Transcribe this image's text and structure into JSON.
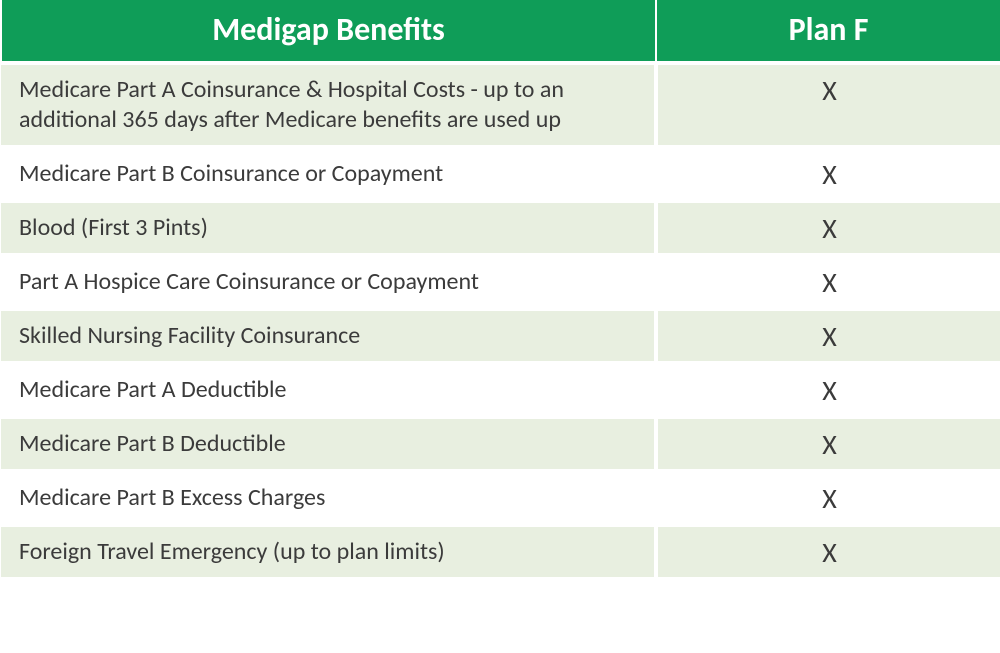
{
  "table": {
    "header_bg": "#0f9d58",
    "header_color": "#ffffff",
    "header_fontsize": 32,
    "row_fontsize": 24,
    "mark_fontsize": 28,
    "row_color": "#3b3b3b",
    "row_bg_odd": "#e8efe0",
    "row_bg_even": "#ffffff",
    "border_color": "#ffffff",
    "col1_width": 655,
    "col2_width": 345,
    "columns": [
      "Medigap Benefits",
      "Plan F"
    ],
    "rows": [
      {
        "benefit": "Medicare Part A Coinsurance & Hospital Costs  - up to an additional 365 days after Medicare benefits are used up",
        "planF": "X"
      },
      {
        "benefit": "Medicare Part B Coinsurance or Copayment",
        "planF": "X"
      },
      {
        "benefit": "Blood (First 3 Pints)",
        "planF": "X"
      },
      {
        "benefit": "Part A Hospice Care Coinsurance or Copayment",
        "planF": "X"
      },
      {
        "benefit": "Skilled Nursing Facility Coinsurance",
        "planF": "X"
      },
      {
        "benefit": "Medicare Part A Deductible",
        "planF": "X"
      },
      {
        "benefit": "Medicare Part B Deductible",
        "planF": "X"
      },
      {
        "benefit": "Medicare Part B Excess Charges",
        "planF": "X"
      },
      {
        "benefit": "Foreign Travel Emergency (up to plan limits)",
        "planF": "X"
      }
    ]
  }
}
